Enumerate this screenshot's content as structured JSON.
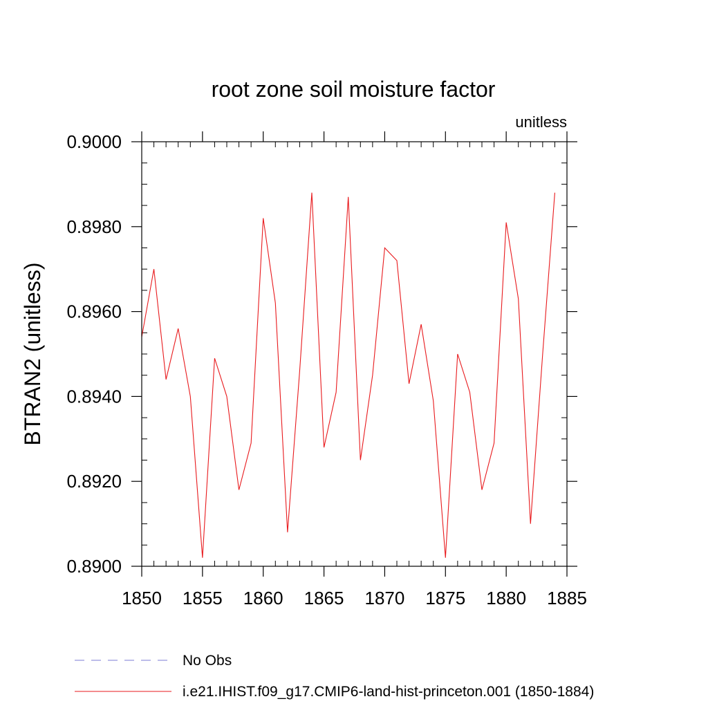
{
  "chart_data": {
    "type": "line",
    "title": "root zone soil moisture factor",
    "units_label": "unitless",
    "ylabel": "BTRAN2  (unitless)",
    "xlabel": "",
    "xlim": [
      1850,
      1885
    ],
    "ylim": [
      0.89,
      0.9
    ],
    "x_ticks": [
      1850,
      1855,
      1860,
      1865,
      1870,
      1875,
      1880,
      1885
    ],
    "x_tick_labels": [
      "1850",
      "1855",
      "1860",
      "1865",
      "1870",
      "1875",
      "1880",
      "1885"
    ],
    "y_ticks": [
      0.89,
      0.892,
      0.894,
      0.896,
      0.898,
      0.9
    ],
    "y_tick_labels": [
      "0.8900",
      "0.8920",
      "0.8940",
      "0.8960",
      "0.8980",
      "0.9000"
    ],
    "x_minor_step": 1,
    "y_minor_step": 0.0005,
    "grid": false,
    "legend_position": "bottom",
    "series": [
      {
        "name": "i.e21.IHIST.f09_g17.CMIP6-land-hist-princeton.001 (1850-1884)",
        "color": "#e8191c",
        "line_style": "solid",
        "x": [
          1850,
          1851,
          1852,
          1853,
          1854,
          1855,
          1856,
          1857,
          1858,
          1859,
          1860,
          1861,
          1862,
          1863,
          1864,
          1865,
          1866,
          1867,
          1868,
          1869,
          1870,
          1871,
          1872,
          1873,
          1874,
          1875,
          1876,
          1877,
          1878,
          1879,
          1880,
          1881,
          1882,
          1883,
          1884
        ],
        "values": [
          0.8954,
          0.897,
          0.8944,
          0.8956,
          0.894,
          0.8902,
          0.8949,
          0.894,
          0.8918,
          0.8929,
          0.8982,
          0.8962,
          0.8908,
          0.8946,
          0.8988,
          0.8928,
          0.8941,
          0.8987,
          0.8925,
          0.8945,
          0.8975,
          0.8972,
          0.8943,
          0.8957,
          0.8939,
          0.8902,
          0.895,
          0.8941,
          0.8918,
          0.8929,
          0.8981,
          0.8963,
          0.891,
          0.895,
          0.8988
        ]
      },
      {
        "name": "No Obs",
        "color": "#7b7bd6",
        "line_style": "dashed",
        "x": [],
        "values": []
      }
    ]
  }
}
